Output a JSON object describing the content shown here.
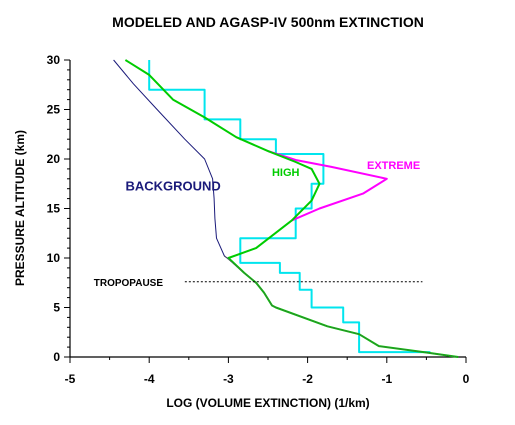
{
  "chart_data": {
    "type": "line",
    "title": "MODELED AND AGASP-IV 500nm EXTINCTION",
    "xlabel": "LOG (VOLUME EXTINCTION)  (1/km)",
    "ylabel": "PRESSURE ALTITUDE (km)",
    "xlim": [
      -5,
      0
    ],
    "ylim": [
      0,
      30
    ],
    "xticks": [
      "-5",
      "-4",
      "-3",
      "-2",
      "-1",
      "0"
    ],
    "yticks": [
      "0",
      "5",
      "10",
      "15",
      "20",
      "25",
      "30"
    ],
    "grid": false,
    "legend": "none",
    "annotations": [
      {
        "text": "TROPOPAUSE",
        "y": 7.6,
        "x": -4.7,
        "line_x": [
          -3.55,
          -0.55
        ]
      }
    ],
    "series": [
      {
        "name": "BACKGROUND",
        "label_pos": [
          -4.3,
          16.8
        ],
        "color": "#1a1a7a",
        "points": [
          [
            -4.45,
            30
          ],
          [
            -4.2,
            27.6
          ],
          [
            -3.9,
            25
          ],
          [
            -3.55,
            22
          ],
          [
            -3.3,
            20
          ],
          [
            -3.2,
            18
          ],
          [
            -3.18,
            16
          ],
          [
            -3.17,
            14
          ],
          [
            -3.15,
            12
          ],
          [
            -3.05,
            10.2
          ],
          [
            -3.0,
            9.9
          ],
          [
            -2.8,
            8.5
          ],
          [
            -2.65,
            7.5
          ],
          [
            -2.55,
            6.5
          ],
          [
            -2.45,
            5.2
          ],
          [
            -2.4,
            5.0
          ],
          [
            -1.75,
            3.1
          ],
          [
            -1.35,
            2.3
          ],
          [
            -1.1,
            1.1
          ],
          [
            -0.5,
            0.45
          ],
          [
            -0.1,
            0
          ]
        ]
      },
      {
        "name": "HIGH",
        "label_pos": [
          -2.45,
          18.3
        ],
        "color": "#00cc00",
        "points": [
          [
            -4.3,
            30
          ],
          [
            -4.0,
            28.5
          ],
          [
            -3.7,
            26
          ],
          [
            -3.3,
            24.2
          ],
          [
            -2.9,
            22.2
          ],
          [
            -2.5,
            20.8
          ],
          [
            -2.15,
            19.7
          ],
          [
            -1.95,
            19.0
          ],
          [
            -1.85,
            17.5
          ],
          [
            -1.95,
            15.8
          ],
          [
            -2.2,
            13.8
          ],
          [
            -2.65,
            11.0
          ],
          [
            -3.0,
            10.0
          ],
          [
            -2.8,
            8.5
          ],
          [
            -2.65,
            7.5
          ],
          [
            -2.55,
            6.5
          ],
          [
            -2.45,
            5.2
          ],
          [
            -2.4,
            5.0
          ],
          [
            -1.75,
            3.1
          ],
          [
            -1.35,
            2.3
          ],
          [
            -1.1,
            1.1
          ],
          [
            -0.5,
            0.45
          ],
          [
            -0.1,
            0
          ]
        ]
      },
      {
        "name": "EXTREME",
        "label_pos": [
          -1.25,
          19.0
        ],
        "color": "#ff00ff",
        "points": [
          [
            -2.5,
            20.8
          ],
          [
            -2.15,
            19.9
          ],
          [
            -1.7,
            19.2
          ],
          [
            -1.0,
            18.0
          ],
          [
            -1.3,
            16.5
          ],
          [
            -1.85,
            15.0
          ],
          [
            -2.2,
            13.8
          ]
        ]
      },
      {
        "name": "AGASP-IV",
        "color": "#00e5ee",
        "step": true,
        "points": [
          [
            -4.0,
            30
          ],
          [
            -4.0,
            27.0
          ],
          [
            -3.3,
            27.0
          ],
          [
            -3.3,
            24.0
          ],
          [
            -2.85,
            24.0
          ],
          [
            -2.85,
            22.0
          ],
          [
            -2.4,
            22.0
          ],
          [
            -2.4,
            20.5
          ],
          [
            -1.8,
            20.5
          ],
          [
            -1.8,
            17.5
          ],
          [
            -1.95,
            17.5
          ],
          [
            -1.95,
            15.0
          ],
          [
            -2.15,
            15.0
          ],
          [
            -2.15,
            12.0
          ],
          [
            -2.85,
            12.0
          ],
          [
            -2.85,
            9.5
          ],
          [
            -2.35,
            9.5
          ],
          [
            -2.35,
            8.5
          ],
          [
            -2.1,
            8.5
          ],
          [
            -2.1,
            6.8
          ],
          [
            -1.95,
            6.8
          ],
          [
            -1.95,
            5.0
          ],
          [
            -1.55,
            5.0
          ],
          [
            -1.55,
            3.5
          ],
          [
            -1.35,
            3.5
          ],
          [
            -1.35,
            0.5
          ],
          [
            -0.45,
            0.5
          ]
        ]
      }
    ]
  }
}
